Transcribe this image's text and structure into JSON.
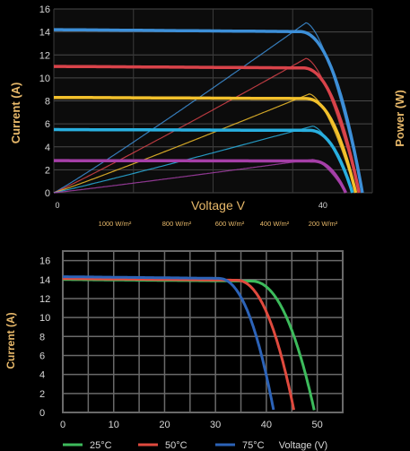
{
  "chart_data": [
    {
      "type": "line",
      "title": "",
      "xlabel": "Voltage V",
      "ylabel": "Current  (A)",
      "ylabel_right": "Power (W)",
      "xlim": [
        0,
        48
      ],
      "ylim": [
        0,
        16
      ],
      "x_ticks": [
        "0",
        "40"
      ],
      "y_ticks": [
        "0",
        "2",
        "4",
        "6",
        "8",
        "10",
        "12",
        "14",
        "16"
      ],
      "grid": true,
      "legend": "below",
      "series": [
        {
          "name": "1000 W/m²",
          "color": "#3d8fd8",
          "isc": 14.2,
          "voc": 46.5,
          "vknee": 37.0,
          "pmax_current": 14.8,
          "pmax_voltage": 38.0
        },
        {
          "name": "800 W/m²",
          "color": "#d9434a",
          "isc": 11.0,
          "voc": 46.0,
          "vknee": 37.5,
          "pmax_current": 11.7,
          "pmax_voltage": 38.0
        },
        {
          "name": "600 W/m²",
          "color": "#f3c12c",
          "isc": 8.3,
          "voc": 45.5,
          "vknee": 38.0,
          "pmax_current": 8.6,
          "pmax_voltage": 38.5
        },
        {
          "name": "400 W/m²",
          "color": "#29b0e0",
          "isc": 5.5,
          "voc": 45.0,
          "vknee": 38.5,
          "pmax_current": 5.8,
          "pmax_voltage": 39.0
        },
        {
          "name": "200 W/m²",
          "color": "#a63fa8",
          "isc": 2.8,
          "voc": 44.0,
          "vknee": 39.0,
          "pmax_current": 2.9,
          "pmax_voltage": 39.0
        }
      ]
    },
    {
      "type": "line",
      "title": "",
      "xlabel": "Voltage (V)",
      "ylabel": "Current (A)",
      "xlim": [
        0,
        55
      ],
      "ylim": [
        0,
        17
      ],
      "x_ticks": [
        "0",
        "10",
        "20",
        "30",
        "40",
        "50"
      ],
      "y_ticks": [
        "0",
        "2",
        "4",
        "6",
        "8",
        "10",
        "12",
        "14",
        "16"
      ],
      "grid": true,
      "legend": "below",
      "series": [
        {
          "name": "25°C",
          "color": "#3dbb5c",
          "isc": 14.0,
          "voc": 49.5,
          "vknee": 37.0
        },
        {
          "name": "50°C",
          "color": "#e04a3e",
          "isc": 14.1,
          "voc": 45.5,
          "vknee": 34.0
        },
        {
          "name": "75°C",
          "color": "#2c63b8",
          "isc": 14.3,
          "voc": 41.5,
          "vknee": 30.5
        }
      ]
    }
  ]
}
